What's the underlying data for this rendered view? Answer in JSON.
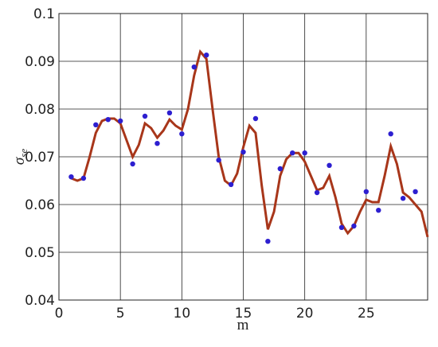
{
  "chart_data": {
    "type": "scatter",
    "xlabel": "m",
    "ylabel": "σ",
    "ylabel_subscript": "se",
    "xlim": [
      0,
      30
    ],
    "ylim": [
      0.04,
      0.1
    ],
    "xticks": [
      0,
      5,
      10,
      15,
      20,
      25
    ],
    "yticks": [
      0.04,
      0.05,
      0.06,
      0.07,
      0.08,
      0.09,
      0.1
    ],
    "grid": true,
    "points": {
      "color": "#2d1fd0",
      "x": [
        1,
        2,
        3,
        4,
        5,
        6,
        7,
        8,
        9,
        10,
        11,
        12,
        13,
        14,
        15,
        16,
        17,
        18,
        19,
        20,
        21,
        22,
        23,
        24,
        25,
        26,
        27,
        28,
        29
      ],
      "values": [
        0.0658,
        0.0655,
        0.0767,
        0.0778,
        0.0775,
        0.0685,
        0.0785,
        0.0728,
        0.0792,
        0.0748,
        0.0888,
        0.0913,
        0.0693,
        0.0642,
        0.071,
        0.078,
        0.0523,
        0.0675,
        0.0708,
        0.0708,
        0.0625,
        0.0682,
        0.0552,
        0.0555,
        0.0627,
        0.0588,
        0.0748,
        0.0613,
        0.0627
      ]
    },
    "curve": {
      "color": "#a8361a",
      "x": [
        1,
        1.5,
        2,
        2.5,
        3,
        3.5,
        4,
        4.5,
        5,
        5.5,
        6,
        6.5,
        7,
        7.5,
        8,
        8.5,
        9,
        9.5,
        10,
        10.5,
        11,
        11.5,
        12,
        12.5,
        13,
        13.5,
        14,
        14.5,
        15,
        15.5,
        16,
        16.5,
        17,
        17.5,
        18,
        18.5,
        19,
        19.5,
        20,
        20.5,
        21,
        21.5,
        22,
        22.5,
        23,
        23.5,
        24,
        24.5,
        25,
        25.5,
        26,
        26.5,
        27,
        27.5,
        28,
        28.5,
        29,
        29.5,
        30
      ],
      "values": [
        0.0655,
        0.065,
        0.0655,
        0.07,
        0.075,
        0.0775,
        0.078,
        0.078,
        0.077,
        0.0735,
        0.07,
        0.0725,
        0.077,
        0.076,
        0.074,
        0.0755,
        0.0778,
        0.0765,
        0.0757,
        0.08,
        0.087,
        0.092,
        0.0905,
        0.08,
        0.07,
        0.065,
        0.064,
        0.0665,
        0.072,
        0.0765,
        0.075,
        0.064,
        0.0548,
        0.0585,
        0.066,
        0.0695,
        0.0708,
        0.0708,
        0.069,
        0.066,
        0.063,
        0.0635,
        0.066,
        0.0615,
        0.056,
        0.054,
        0.0555,
        0.0585,
        0.061,
        0.0605,
        0.0605,
        0.066,
        0.0722,
        0.0685,
        0.0625,
        0.0615,
        0.06,
        0.0585,
        0.0532
      ]
    }
  }
}
